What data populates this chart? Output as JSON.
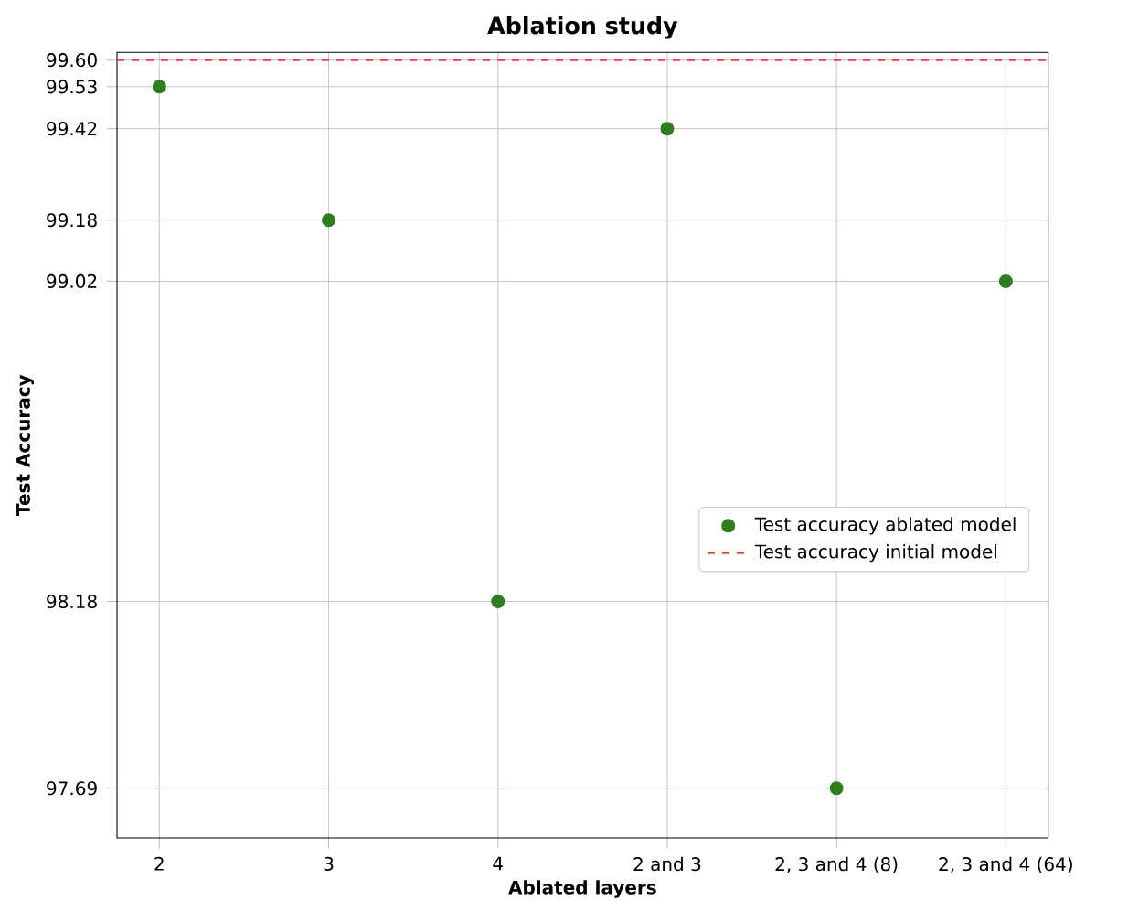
{
  "chart_data": {
    "type": "scatter",
    "title": "Ablation study",
    "xlabel": "Ablated layers",
    "ylabel": "Test Accuracy",
    "categories": [
      "2",
      "3",
      "4",
      "2 and 3",
      "2, 3 and 4 (8)",
      "2, 3 and 4 (64)"
    ],
    "series": [
      {
        "name": "Test accuracy ablated model",
        "color": "#2e7d1e",
        "values": [
          99.53,
          99.18,
          98.18,
          99.42,
          97.69,
          99.02
        ]
      }
    ],
    "ref_lines": [
      {
        "axis": "y",
        "value": 99.6,
        "label": "Test accuracy initial model",
        "color": "#e8443a",
        "line_style": "dashed"
      }
    ],
    "ylim": [
      97.56,
      99.62
    ],
    "yticks": [
      97.69,
      98.18,
      99.02,
      99.18,
      99.42,
      99.53,
      {
        "value": 99.6,
        "label": "99.60"
      }
    ],
    "grid": true,
    "legend": "right",
    "marker": "circle"
  }
}
